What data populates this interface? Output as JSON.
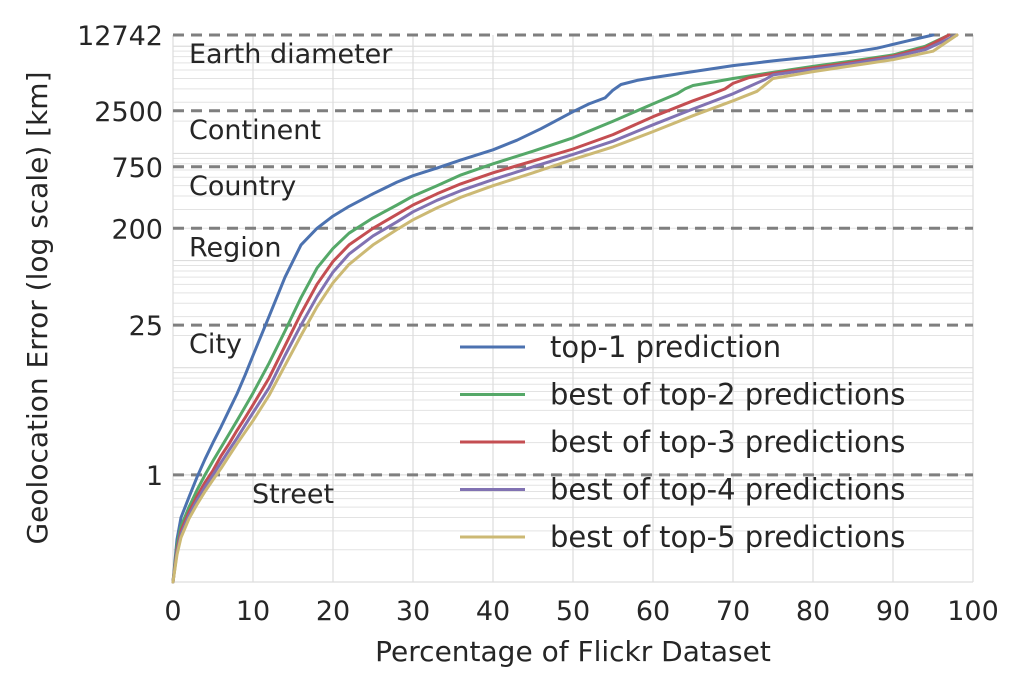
{
  "chart_data": {
    "type": "line",
    "xlabel": "Percentage of Flickr Dataset",
    "ylabel": "Geolocation Error (log scale) [km]",
    "xlim": [
      0,
      100
    ],
    "ylim": [
      0.1,
      12742
    ],
    "yscale": "log",
    "grid": true,
    "legend_position": "bottom-right",
    "x_ticks": [
      0,
      10,
      20,
      30,
      40,
      50,
      60,
      70,
      80,
      90,
      100
    ],
    "y_ticks": [
      {
        "value": 1,
        "label": "1"
      },
      {
        "value": 25,
        "label": "25"
      },
      {
        "value": 200,
        "label": "200"
      },
      {
        "value": 750,
        "label": "750"
      },
      {
        "value": 2500,
        "label": "2500"
      },
      {
        "value": 12742,
        "label": "12742"
      }
    ],
    "thresholds": [
      {
        "value": 12742,
        "label": "Earth diameter"
      },
      {
        "value": 2500,
        "label": "Continent"
      },
      {
        "value": 750,
        "label": "Country"
      },
      {
        "value": 200,
        "label": "Region"
      },
      {
        "value": 25,
        "label": "City"
      },
      {
        "value": 1,
        "label": "Street"
      }
    ],
    "series": [
      {
        "name": "top-1 prediction",
        "color": "#4c72b0",
        "x": [
          0,
          0.5,
          1,
          2,
          3,
          4,
          5,
          6,
          7,
          8,
          9,
          10,
          12,
          14,
          16,
          18,
          20,
          22,
          25,
          28,
          30,
          33,
          36,
          40,
          43,
          46,
          50,
          52,
          54,
          55,
          56,
          58,
          60,
          65,
          70,
          75,
          80,
          84,
          88,
          92,
          95
        ],
        "y": [
          0.1,
          0.25,
          0.4,
          0.62,
          0.95,
          1.4,
          2.0,
          2.8,
          4.0,
          5.7,
          8.5,
          13,
          30,
          70,
          140,
          200,
          260,
          320,
          420,
          540,
          620,
          730,
          870,
          1080,
          1330,
          1700,
          2450,
          2900,
          3300,
          3900,
          4400,
          4800,
          5100,
          5800,
          6600,
          7300,
          8000,
          8600,
          9600,
          11300,
          12742
        ]
      },
      {
        "name": "best of top-2 predictions",
        "color": "#55a868",
        "x": [
          0,
          0.5,
          1,
          2,
          3,
          4,
          5,
          6,
          7,
          8,
          9,
          10,
          12,
          14,
          16,
          18,
          20,
          22,
          25,
          28,
          30,
          33,
          36,
          40,
          45,
          50,
          55,
          60,
          63,
          64,
          65,
          68,
          70,
          75,
          80,
          85,
          90,
          94,
          97
        ],
        "y": [
          0.1,
          0.22,
          0.33,
          0.5,
          0.72,
          1.0,
          1.35,
          1.8,
          2.4,
          3.2,
          4.3,
          5.8,
          11,
          22,
          45,
          85,
          130,
          180,
          250,
          330,
          400,
          500,
          630,
          800,
          1050,
          1400,
          2000,
          2900,
          3600,
          4000,
          4300,
          4700,
          5000,
          5700,
          6500,
          7300,
          8300,
          10000,
          12742
        ]
      },
      {
        "name": "best of top-3 predictions",
        "color": "#c44e52",
        "x": [
          0,
          0.5,
          1,
          2,
          3,
          4,
          5,
          6,
          7,
          8,
          9,
          10,
          12,
          14,
          16,
          18,
          20,
          22,
          25,
          28,
          30,
          33,
          36,
          40,
          45,
          50,
          55,
          60,
          65,
          67,
          69,
          70,
          72,
          75,
          80,
          85,
          90,
          94,
          97
        ],
        "y": [
          0.1,
          0.2,
          0.3,
          0.45,
          0.63,
          0.85,
          1.1,
          1.5,
          1.95,
          2.6,
          3.4,
          4.5,
          8,
          16,
          32,
          60,
          98,
          140,
          200,
          270,
          330,
          420,
          520,
          660,
          850,
          1100,
          1500,
          2200,
          3100,
          3500,
          4000,
          4500,
          5100,
          5600,
          6300,
          7100,
          8100,
          9700,
          12742
        ]
      },
      {
        "name": "best of top-4 predictions",
        "color": "#8172b2",
        "x": [
          0,
          0.5,
          1,
          2,
          3,
          4,
          5,
          6,
          7,
          8,
          9,
          10,
          12,
          14,
          16,
          18,
          20,
          22,
          25,
          28,
          30,
          33,
          36,
          40,
          45,
          50,
          55,
          60,
          65,
          70,
          72,
          74,
          75,
          80,
          85,
          90,
          94,
          98
        ],
        "y": [
          0.1,
          0.19,
          0.28,
          0.42,
          0.58,
          0.77,
          1.0,
          1.3,
          1.7,
          2.2,
          2.9,
          3.8,
          6.5,
          13,
          25,
          46,
          78,
          115,
          170,
          230,
          285,
          365,
          450,
          570,
          750,
          980,
          1300,
          1850,
          2600,
          3600,
          4200,
          4900,
          5400,
          6100,
          6900,
          7900,
          9300,
          12742
        ]
      },
      {
        "name": "best of top-5 predictions",
        "color": "#ccb974",
        "x": [
          0,
          0.5,
          1,
          2,
          3,
          4,
          5,
          6,
          7,
          8,
          9,
          10,
          12,
          14,
          16,
          18,
          20,
          22,
          25,
          28,
          30,
          33,
          36,
          40,
          45,
          50,
          55,
          60,
          65,
          70,
          73,
          75,
          80,
          85,
          90,
          95,
          98
        ],
        "y": [
          0.1,
          0.18,
          0.26,
          0.39,
          0.53,
          0.7,
          0.9,
          1.15,
          1.5,
          1.95,
          2.5,
          3.2,
          5.5,
          10.5,
          20,
          37,
          62,
          92,
          140,
          195,
          240,
          310,
          390,
          500,
          660,
          880,
          1150,
          1600,
          2250,
          3100,
          3800,
          5000,
          5800,
          6600,
          7500,
          9000,
          12742
        ]
      }
    ]
  }
}
